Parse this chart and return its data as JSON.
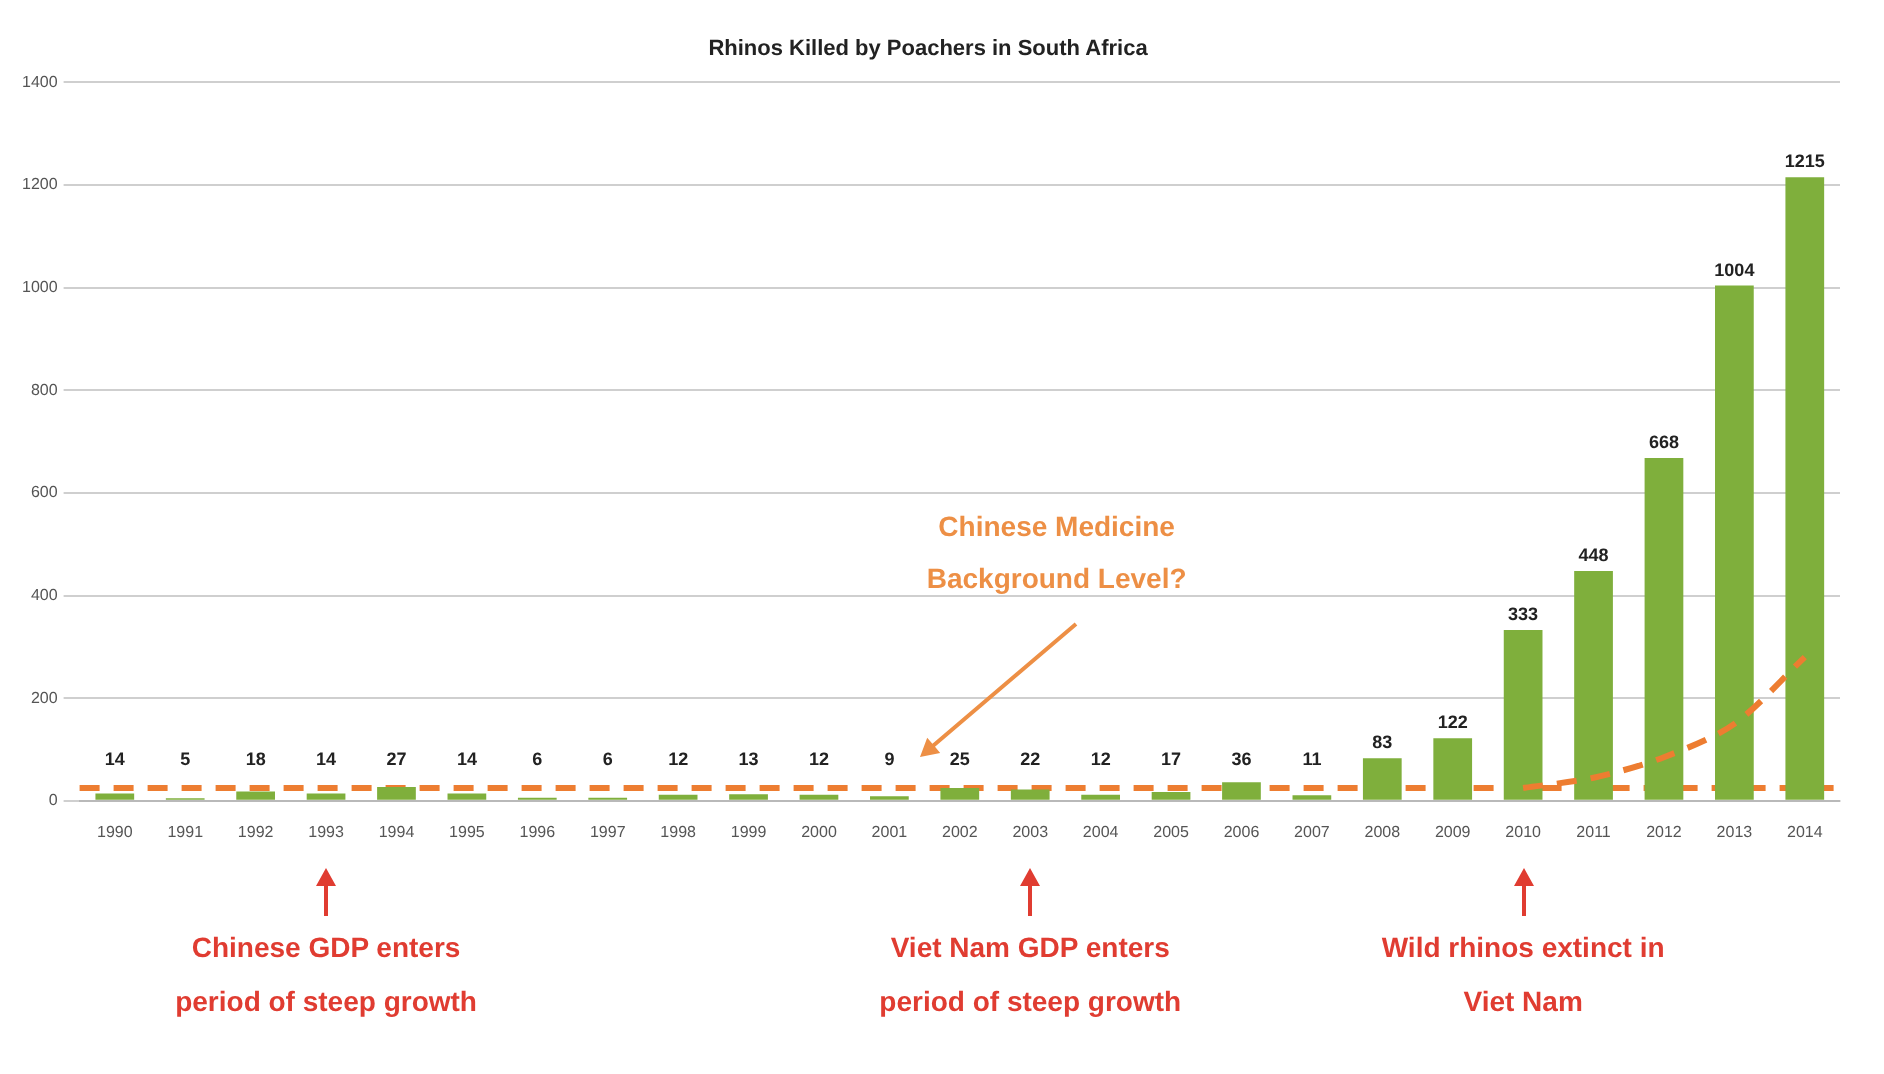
{
  "chart_data": {
    "type": "bar",
    "title": "Rhinos Killed by Poachers in South Africa",
    "categories": [
      "1990",
      "1991",
      "1992",
      "1993",
      "1994",
      "1995",
      "1996",
      "1997",
      "1998",
      "1999",
      "2000",
      "2001",
      "2002",
      "2003",
      "2004",
      "2005",
      "2006",
      "2007",
      "2008",
      "2009",
      "2010",
      "2011",
      "2012",
      "2013",
      "2014"
    ],
    "series": [
      {
        "color": "#7faf3c",
        "values": [
          14,
          5,
          18,
          14,
          27,
          14,
          6,
          6,
          12,
          13,
          12,
          9,
          25,
          22,
          12,
          17,
          36,
          11,
          83,
          122,
          333,
          448,
          668,
          1004,
          1215
        ],
        "value_labels": [
          "14",
          "5",
          "18",
          "14",
          "27",
          "14",
          "6",
          "6",
          "12",
          "13",
          "12",
          "9",
          "25",
          "22",
          "12",
          "17",
          "36",
          "11",
          "83",
          "122",
          "333",
          "448",
          "668",
          "1004",
          "1215"
        ]
      },
      {
        "type": "line",
        "color": "#ed7d31",
        "line_style": "dashed",
        "marker": "none",
        "values": [
          null,
          null,
          null,
          null,
          null,
          null,
          null,
          null,
          null,
          null,
          null,
          null,
          null,
          null,
          null,
          null,
          null,
          null,
          null,
          null,
          25,
          45,
          85,
          150,
          280
        ]
      }
    ],
    "ylim": [
      0,
      1400
    ],
    "yticks": [
      0,
      200,
      400,
      600,
      800,
      1000,
      1200,
      1400
    ],
    "grid": "y",
    "legend": false,
    "ref_lines": [
      {
        "axis": "y",
        "value": 25,
        "color": "#ed7d31",
        "line_style": "dashed"
      }
    ],
    "annotations": [
      "Chinese Medicine Background Level?",
      "Chinese GDP enters period of steep growth",
      "Viet Nam GDP enters period of steep growth",
      "Wild rhinos extinct in Viet Nam"
    ]
  }
}
